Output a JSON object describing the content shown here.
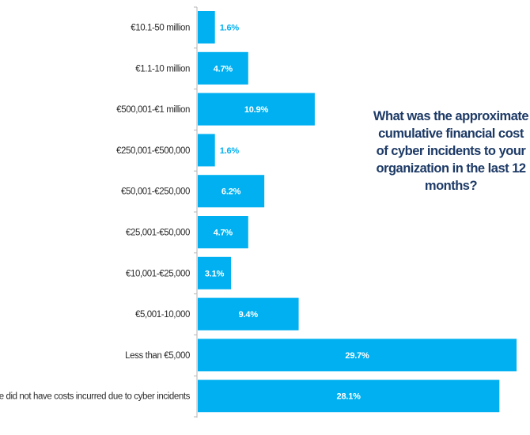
{
  "chart_data": {
    "type": "bar",
    "orientation": "horizontal",
    "title": "What was the approximate cumulative financial cost of cyber incidents to your organization in the last 12 months?",
    "xlabel": "",
    "ylabel": "",
    "unit": "%",
    "categories": [
      "€10.1-50 million",
      "€1.1-10 million",
      "€500,001-€1 million",
      "€250,001-€500,000",
      "€50,001-€250,000",
      "€25,001-€50,000",
      "€10,001-€25,000",
      "€5,001-10,000",
      "Less than €5,000",
      "We did not have costs incurred due to cyber incidents"
    ],
    "values": [
      1.6,
      4.7,
      10.9,
      1.6,
      6.2,
      4.7,
      3.1,
      9.4,
      29.7,
      28.1
    ],
    "labels": [
      "1.6%",
      "4.7%",
      "10.9%",
      "1.6%",
      "6.2%",
      "4.7%",
      "3.1%",
      "9.4%",
      "29.7%",
      "28.1%"
    ],
    "xlim": [
      0,
      30
    ],
    "grid": false,
    "legend": "none",
    "colors": {
      "bar": "#00b0f0",
      "label_inside": "#ffffff",
      "label_outside": "#00b0f0",
      "title": "#1d3a66",
      "axis": "#b5b5b5"
    }
  }
}
